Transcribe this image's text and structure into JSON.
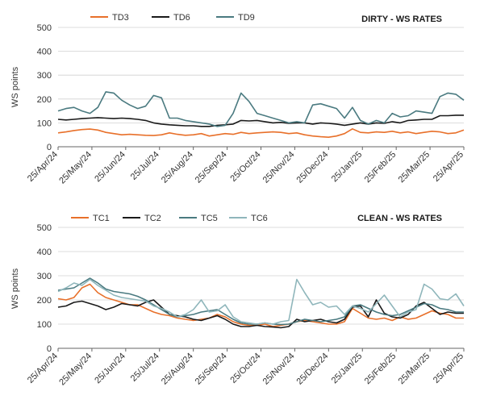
{
  "chart_data": [
    {
      "type": "line",
      "title": "DIRTY - WS RATES",
      "xlabel": "",
      "ylabel": "WS points",
      "ylim": [
        0,
        500
      ],
      "yticks": [
        0,
        100,
        200,
        300,
        400,
        500
      ],
      "x_tick_labels": [
        "25/Apr/24",
        "25/May/24",
        "25/Jun/24",
        "25/Jul/24",
        "25/Aug/24",
        "25/Sep/24",
        "25/Oct/24",
        "25/Nov/24",
        "25/Dec/24",
        "25/Jan/25",
        "25/Feb/25",
        "25/Mar/25",
        "25/Apr/25"
      ],
      "grid": "horizontal",
      "legend": "top-left",
      "series": [
        {
          "name": "TD3",
          "color": "#e8702a",
          "values": [
            58,
            62,
            68,
            72,
            74,
            70,
            60,
            55,
            50,
            52,
            50,
            48,
            47,
            50,
            58,
            52,
            48,
            50,
            55,
            45,
            50,
            55,
            52,
            60,
            55,
            58,
            60,
            62,
            60,
            55,
            58,
            50,
            45,
            42,
            40,
            45,
            55,
            75,
            60,
            58,
            62,
            60,
            65,
            58,
            62,
            55,
            60,
            65,
            62,
            55,
            58,
            70
          ]
        },
        {
          "name": "TD6",
          "color": "#1a1a1a",
          "values": [
            115,
            112,
            115,
            118,
            120,
            122,
            120,
            118,
            120,
            118,
            115,
            110,
            100,
            95,
            92,
            90,
            88,
            88,
            85,
            85,
            90,
            92,
            95,
            110,
            108,
            110,
            105,
            100,
            102,
            98,
            100,
            100,
            95,
            100,
            98,
            95,
            90,
            95,
            100,
            95,
            100,
            98,
            105,
            100,
            110,
            112,
            115,
            115,
            130,
            130,
            132,
            132
          ]
        },
        {
          "name": "TD9",
          "color": "#4a7a80",
          "values": [
            150,
            160,
            165,
            150,
            140,
            165,
            230,
            225,
            195,
            175,
            160,
            170,
            215,
            205,
            120,
            120,
            110,
            105,
            100,
            95,
            85,
            90,
            140,
            225,
            190,
            140,
            130,
            120,
            110,
            100,
            105,
            100,
            175,
            180,
            170,
            160,
            120,
            165,
            110,
            95,
            110,
            100,
            140,
            125,
            130,
            150,
            145,
            140,
            210,
            225,
            220,
            195
          ]
        }
      ]
    },
    {
      "type": "line",
      "title": "CLEAN - WS RATES",
      "xlabel": "",
      "ylabel": "WS points",
      "ylim": [
        0,
        500
      ],
      "yticks": [
        0,
        100,
        200,
        300,
        400,
        500
      ],
      "x_tick_labels": [
        "25/Apr/24",
        "25/May/24",
        "25/Jun/24",
        "25/Jul/24",
        "25/Aug/24",
        "25/Sep/24",
        "25/Oct/24",
        "25/Nov/24",
        "25/Dec/24",
        "25/Jan/25",
        "25/Feb/25",
        "25/Mar/25",
        "25/Apr/25"
      ],
      "grid": "horizontal",
      "legend": "top-left",
      "series": [
        {
          "name": "TC1",
          "color": "#e8702a",
          "values": [
            205,
            200,
            210,
            250,
            265,
            230,
            210,
            200,
            190,
            180,
            180,
            165,
            150,
            140,
            135,
            125,
            120,
            115,
            120,
            125,
            140,
            130,
            110,
            100,
            95,
            95,
            100,
            90,
            95,
            100,
            110,
            115,
            110,
            105,
            100,
            100,
            110,
            165,
            145,
            125,
            120,
            125,
            115,
            130,
            120,
            125,
            140,
            155,
            145,
            140,
            125,
            125
          ]
        },
        {
          "name": "TC2",
          "color": "#1a1a1a",
          "values": [
            170,
            175,
            190,
            195,
            185,
            175,
            160,
            170,
            185,
            180,
            175,
            190,
            200,
            170,
            140,
            135,
            130,
            120,
            115,
            125,
            135,
            120,
            100,
            90,
            90,
            95,
            90,
            88,
            85,
            90,
            120,
            110,
            115,
            120,
            110,
            105,
            120,
            170,
            175,
            130,
            200,
            145,
            130,
            125,
            140,
            175,
            190,
            165,
            140,
            150,
            145,
            145
          ]
        },
        {
          "name": "TC5",
          "color": "#4a7a80",
          "values": [
            240,
            245,
            250,
            270,
            290,
            270,
            245,
            235,
            230,
            225,
            215,
            200,
            180,
            160,
            140,
            130,
            135,
            140,
            150,
            155,
            160,
            140,
            120,
            105,
            100,
            100,
            105,
            100,
            98,
            100,
            110,
            120,
            115,
            110,
            115,
            120,
            130,
            175,
            180,
            165,
            150,
            140,
            135,
            140,
            155,
            170,
            185,
            180,
            165,
            160,
            150,
            150
          ]
        },
        {
          "name": "TC6",
          "color": "#8fb6bb",
          "values": [
            235,
            250,
            270,
            260,
            285,
            260,
            240,
            220,
            210,
            205,
            200,
            195,
            175,
            165,
            150,
            130,
            140,
            160,
            200,
            150,
            155,
            180,
            130,
            110,
            105,
            100,
            105,
            100,
            110,
            115,
            285,
            230,
            180,
            190,
            170,
            175,
            140,
            175,
            165,
            150,
            185,
            220,
            175,
            130,
            150,
            160,
            265,
            245,
            205,
            200,
            225,
            175
          ]
        }
      ]
    }
  ]
}
